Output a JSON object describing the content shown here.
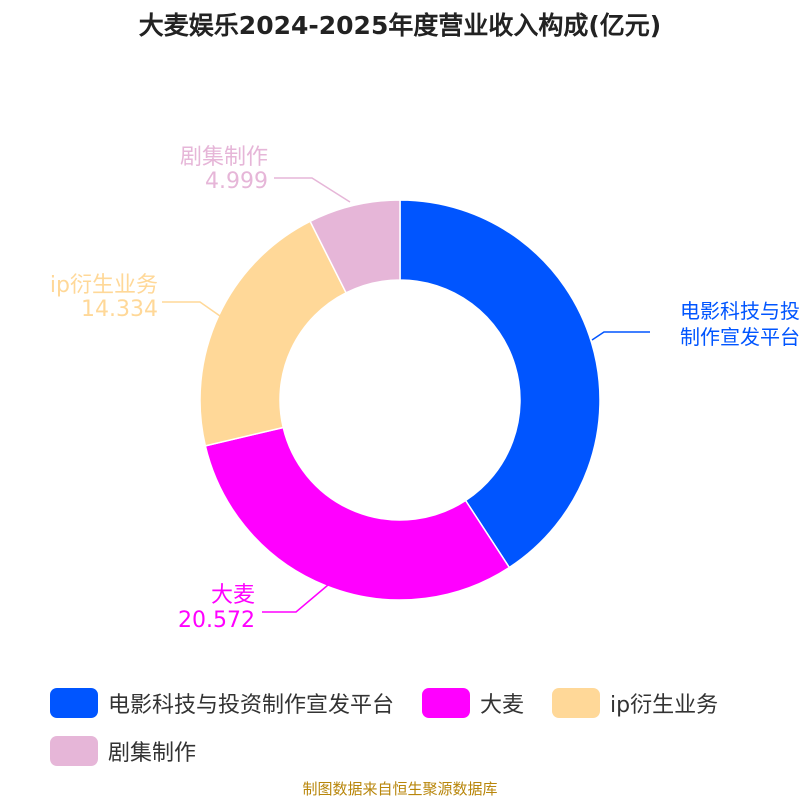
{
  "chart_data": {
    "type": "pie",
    "title": "大麦娱乐2024-2025年度营业收入构成(亿元)",
    "categories": [
      "电影科技与投资制作宣发平台",
      "大麦",
      "ip衍生业务",
      "剧集制作"
    ],
    "label_lines": [
      [
        "电影科技与投",
        "制作宣发平台"
      ],
      [
        "大麦",
        "20.572"
      ],
      [
        "ip衍生业务",
        "14.334"
      ],
      [
        "剧集制作",
        "4.999"
      ]
    ],
    "values": [
      27.5,
      20.572,
      14.334,
      4.999
    ],
    "colors": [
      "#0055ff",
      "#ff00ff",
      "#ffd898",
      "#e6b6d8"
    ],
    "legend_position": "bottom",
    "source": "制图数据来自恒生聚源数据库"
  }
}
